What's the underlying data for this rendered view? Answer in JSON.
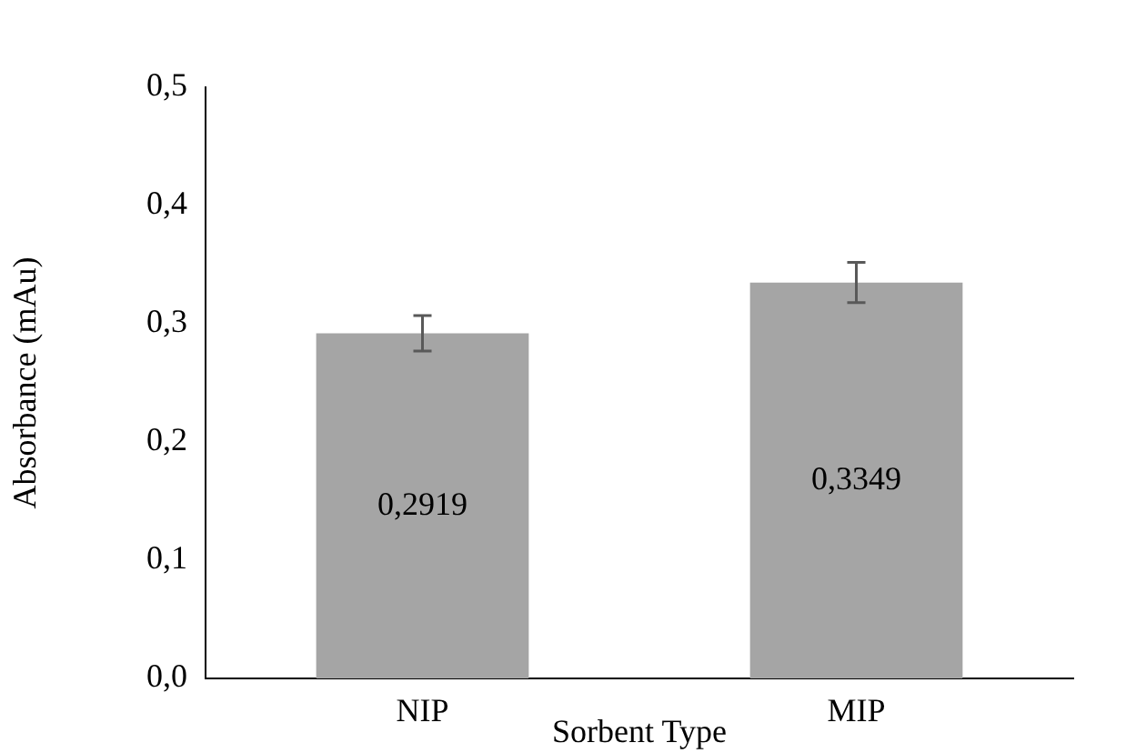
{
  "chart_data": {
    "type": "bar",
    "xlabel": "Sorbent Type",
    "ylabel": "Absorbance (mAu)",
    "categories": [
      "NIP",
      "MIP"
    ],
    "values": [
      0.2919,
      0.3349
    ],
    "value_labels": [
      "0,2919",
      "0,3349"
    ],
    "errors": [
      0.015,
      0.017
    ],
    "color": "#a5a5a5",
    "ylim": [
      0,
      0.5
    ],
    "yticks": [
      {
        "value": 0,
        "label": "0,0"
      },
      {
        "value": 0.1,
        "label": "0,1"
      },
      {
        "value": 0.2,
        "label": "0,2"
      },
      {
        "value": 0.3,
        "label": "0,3"
      },
      {
        "value": 0.4,
        "label": "0,4"
      },
      {
        "value": 0.5,
        "label": "0,5"
      }
    ],
    "grid": false,
    "legend": false
  }
}
